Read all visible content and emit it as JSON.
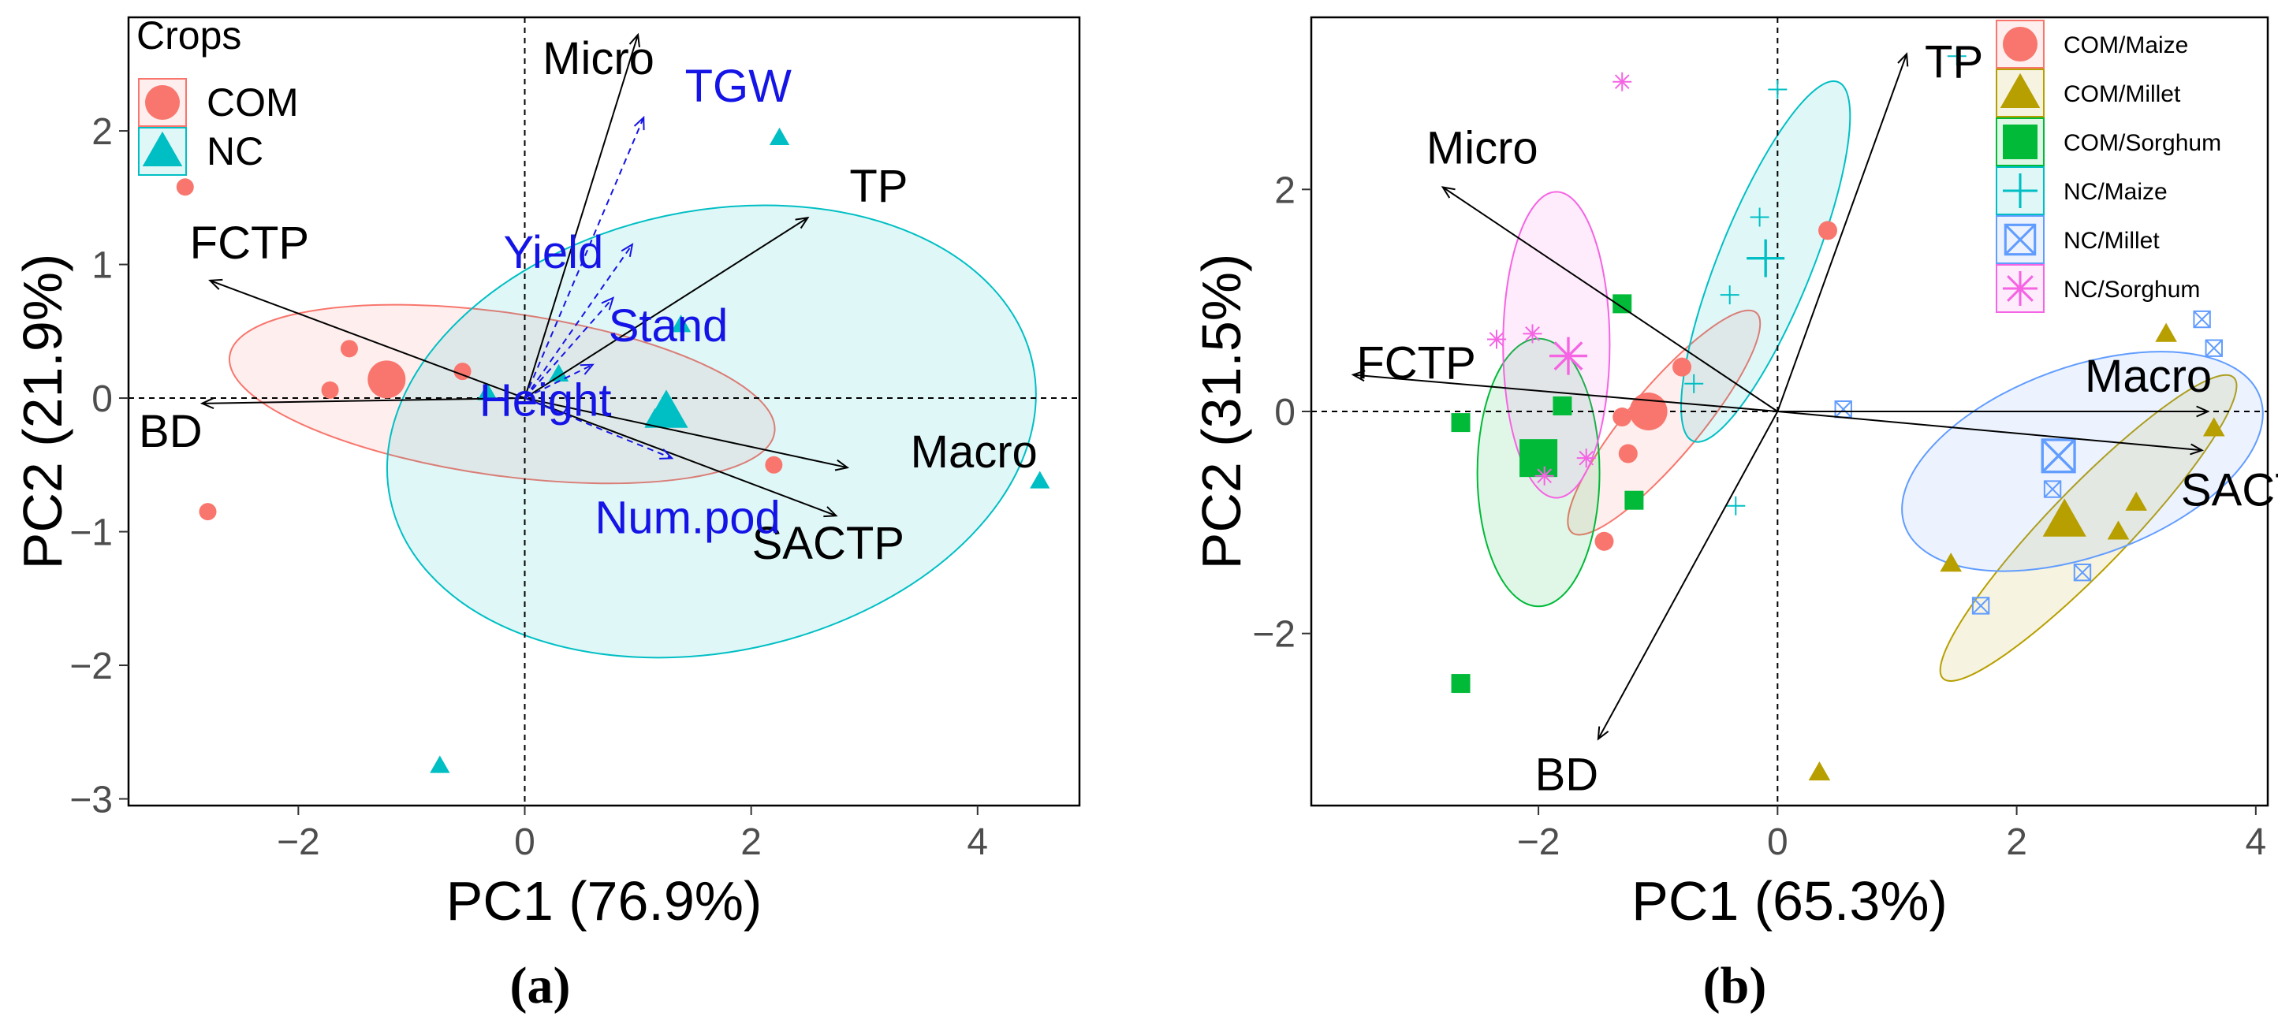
{
  "colors": {
    "com": "#F8766D",
    "nc": "#00BFC4",
    "com_maize": "#F8766D",
    "com_millet": "#B79F00",
    "com_sorghum": "#00BA38",
    "nc_maize": "#00BFC4",
    "nc_millet": "#619CFF",
    "nc_sorghum": "#F564E3",
    "supp": "#1414E6"
  },
  "captions": {
    "a": "(a)",
    "b": "(b)"
  },
  "chart_data": [
    {
      "type": "scatter",
      "panel": "a",
      "xlabel": "PC1 (76.9%)",
      "ylabel": "PC2 (21.9%)",
      "xlim": [
        -3.5,
        4.9
      ],
      "ylim": [
        -3.05,
        2.85
      ],
      "xticks": [
        -2,
        0,
        2,
        4
      ],
      "yticks": [
        -3,
        -2,
        -1,
        0,
        1,
        2
      ],
      "legend": {
        "title": "Crops",
        "position": "top-left",
        "entries": [
          "COM",
          "NC"
        ]
      },
      "series": [
        {
          "name": "COM",
          "shape": "circle",
          "color_key": "com",
          "points": [
            [
              -3.0,
              1.58
            ],
            [
              -2.8,
              -0.85
            ],
            [
              -1.55,
              0.37
            ],
            [
              -1.72,
              0.06
            ],
            [
              -0.55,
              0.2
            ],
            [
              2.2,
              -0.5
            ]
          ],
          "centroid": [
            -1.22,
            0.14
          ],
          "ellipse": {
            "cx": -0.2,
            "cy": 0.03,
            "rx": 2.43,
            "ry": 0.61,
            "angle": -8
          }
        },
        {
          "name": "NC",
          "shape": "triangle",
          "color_key": "nc",
          "points": [
            [
              2.25,
              1.95
            ],
            [
              4.55,
              -0.62
            ],
            [
              -0.75,
              -2.75
            ],
            [
              1.38,
              0.55
            ],
            [
              0.3,
              0.18
            ],
            [
              -0.33,
              0.04
            ],
            [
              1.15,
              -0.15
            ]
          ],
          "centroid": [
            1.25,
            -0.1
          ],
          "ellipse": {
            "cx": 1.65,
            "cy": -0.25,
            "rx": 2.9,
            "ry": 1.65,
            "angle": 12
          }
        }
      ],
      "loadings": [
        {
          "name": "Micro",
          "x": 1.0,
          "y": 2.72
        },
        {
          "name": "TP",
          "x": 2.5,
          "y": 1.35
        },
        {
          "name": "FCTP",
          "x": -2.78,
          "y": 0.88
        },
        {
          "name": "BD",
          "x": -2.85,
          "y": -0.04
        },
        {
          "name": "Macro",
          "x": 2.85,
          "y": -0.52
        },
        {
          "name": "SACTP",
          "x": 2.75,
          "y": -0.88
        }
      ],
      "supplementary": [
        {
          "name": "TGW",
          "x": 1.05,
          "y": 2.1
        },
        {
          "name": "Yield",
          "x": 0.95,
          "y": 1.15
        },
        {
          "name": "Stand",
          "x": 0.78,
          "y": 0.75
        },
        {
          "name": "Height",
          "x": 0.6,
          "y": 0.25
        },
        {
          "name": "Num.pod",
          "x": 1.3,
          "y": -0.45
        }
      ],
      "label_text": {
        "Micro": "Micro",
        "TP": "TP",
        "FCTP": "FCTP",
        "BD": "BD",
        "Macro": "Macro",
        "SACTP": "SACTP",
        "TGW": "TGW",
        "Yield": "Yield",
        "Stand": "Stand",
        "Height": "Height",
        "Num.pod": "Num.pod"
      }
    },
    {
      "type": "scatter",
      "panel": "b",
      "xlabel": "PC1 (65.3%)",
      "ylabel": "PC2 (31.5%)",
      "xlim": [
        -3.9,
        4.1
      ],
      "ylim": [
        -3.55,
        3.55
      ],
      "xticks": [
        -2,
        0,
        2,
        4
      ],
      "yticks": [
        -2,
        0,
        2
      ],
      "legend": {
        "position": "top-right",
        "entries": [
          "COM/Maize",
          "COM/Millet",
          "COM/Sorghum",
          "NC/Maize",
          "NC/Millet",
          "NC/Sorghum"
        ]
      },
      "series": [
        {
          "name": "COM/Maize",
          "shape": "circle",
          "color_key": "com_maize",
          "points": [
            [
              0.42,
              1.63
            ],
            [
              -0.8,
              0.4
            ],
            [
              -1.25,
              -0.38
            ],
            [
              -1.45,
              -1.17
            ],
            [
              -1.3,
              -0.05
            ]
          ],
          "centroid": [
            -1.08,
            0.0
          ],
          "ellipse": {
            "cx": -0.95,
            "cy": -0.1,
            "rx": 1.2,
            "ry": 0.32,
            "angle": 50
          }
        },
        {
          "name": "COM/Millet",
          "shape": "triangle",
          "color_key": "com_millet",
          "points": [
            [
              3.25,
              0.7
            ],
            [
              3.65,
              -0.15
            ],
            [
              3.0,
              -0.82
            ],
            [
              2.85,
              -1.08
            ],
            [
              1.45,
              -1.37
            ],
            [
              0.35,
              -3.25
            ]
          ],
          "centroid": [
            2.4,
            -0.98
          ],
          "ellipse": {
            "cx": 2.6,
            "cy": -1.05,
            "rx": 1.75,
            "ry": 0.36,
            "angle": 46
          }
        },
        {
          "name": "COM/Sorghum",
          "shape": "square",
          "color_key": "com_sorghum",
          "points": [
            [
              -1.3,
              0.97
            ],
            [
              -1.8,
              0.05
            ],
            [
              -2.65,
              -0.1
            ],
            [
              -1.2,
              -0.8
            ],
            [
              -2.65,
              -2.45
            ]
          ],
          "centroid": [
            -2.0,
            -0.42
          ],
          "ellipse": {
            "cx": -2.0,
            "cy": -0.55,
            "rx": 1.12,
            "ry": 0.55,
            "angle": 90
          }
        },
        {
          "name": "NC/Maize",
          "shape": "plus",
          "color_key": "nc_maize",
          "points": [
            [
              1.5,
              3.2
            ],
            [
              0.0,
              2.9
            ],
            [
              -0.15,
              1.75
            ],
            [
              -0.4,
              1.05
            ],
            [
              -0.7,
              0.25
            ],
            [
              -0.35,
              -0.85
            ]
          ],
          "centroid": [
            -0.1,
            1.38
          ],
          "ellipse": {
            "cx": -0.1,
            "cy": 1.35,
            "rx": 1.62,
            "ry": 0.42,
            "angle": 68
          }
        },
        {
          "name": "NC/Millet",
          "shape": "boxx",
          "color_key": "nc_millet",
          "points": [
            [
              3.55,
              0.83
            ],
            [
              3.65,
              0.57
            ],
            [
              0.55,
              0.02
            ],
            [
              2.3,
              -0.7
            ],
            [
              2.55,
              -1.45
            ],
            [
              1.7,
              -1.75
            ]
          ],
          "centroid": [
            2.35,
            -0.4
          ],
          "ellipse": {
            "cx": 2.55,
            "cy": -0.45,
            "rx": 1.58,
            "ry": 0.85,
            "angle": 20
          }
        },
        {
          "name": "NC/Sorghum",
          "shape": "star",
          "color_key": "nc_sorghum",
          "points": [
            [
              -1.3,
              2.97
            ],
            [
              -2.35,
              0.65
            ],
            [
              -2.05,
              0.7
            ],
            [
              -1.95,
              -0.58
            ],
            [
              -1.6,
              -0.42
            ]
          ],
          "centroid": [
            -1.75,
            0.5
          ],
          "ellipse": {
            "cx": -1.85,
            "cy": 0.6,
            "rx": 1.28,
            "ry": 0.48,
            "angle": 90
          }
        }
      ],
      "loadings": [
        {
          "name": "TP",
          "x": 1.08,
          "y": 3.22
        },
        {
          "name": "Micro",
          "x": -2.8,
          "y": 2.02
        },
        {
          "name": "FCTP",
          "x": -3.55,
          "y": 0.33
        },
        {
          "name": "BD",
          "x": -1.5,
          "y": -2.95
        },
        {
          "name": "Macro",
          "x": 3.6,
          "y": 0.0
        },
        {
          "name": "SACTP",
          "x": 3.55,
          "y": -0.35
        }
      ],
      "label_text": {
        "TP": "TP",
        "Micro": "Micro",
        "FCTP": "FCTP",
        "BD": "BD",
        "Macro": "Macro",
        "SACTP": "SACTP"
      }
    }
  ]
}
